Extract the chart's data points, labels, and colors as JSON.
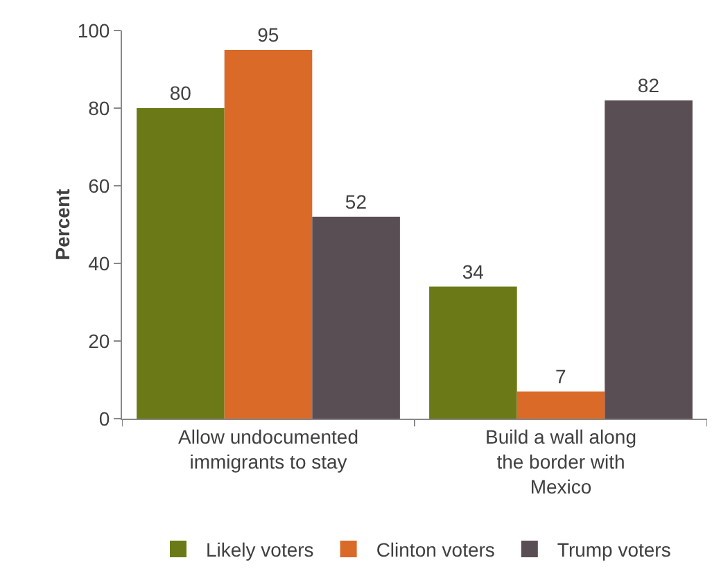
{
  "chart_data": {
    "type": "bar",
    "ylabel": "Percent",
    "categories": [
      "Allow undocumented immigrants to stay",
      "Build a wall along the border with Mexico"
    ],
    "series": [
      {
        "name": "Likely voters",
        "color": "#6b7a17",
        "values": [
          80,
          34
        ]
      },
      {
        "name": "Clinton voters",
        "color": "#d96a28",
        "values": [
          95,
          7
        ]
      },
      {
        "name": "Trump voters",
        "color": "#5a4e55",
        "values": [
          52,
          82
        ]
      }
    ],
    "ylim": [
      0,
      100
    ],
    "yticks": [
      0,
      20,
      40,
      60,
      80,
      100
    ],
    "grid": false,
    "legend": "bottom",
    "data_labels": true
  }
}
